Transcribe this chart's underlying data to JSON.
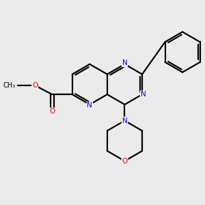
{
  "bg_color": "#ebebeb",
  "bond_color": "#000000",
  "N_color": "#0000ee",
  "O_color": "#ee0000",
  "line_width": 1.6,
  "dbo": 0.1,
  "bl": 1.0,
  "figsize": [
    3.0,
    3.0
  ],
  "dpi": 100,
  "xlim": [
    0,
    10
  ],
  "ylim": [
    0,
    10
  ],
  "fs": 7.5
}
